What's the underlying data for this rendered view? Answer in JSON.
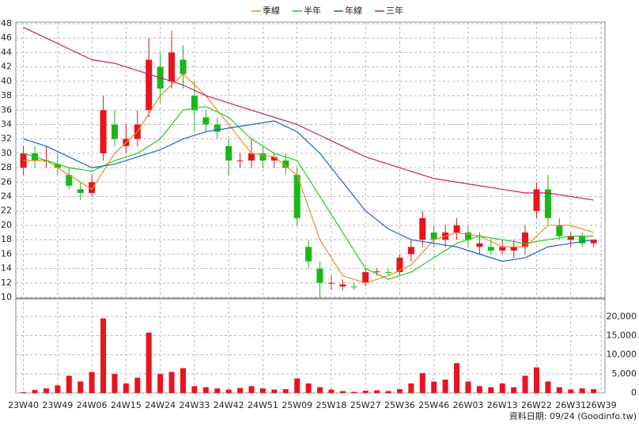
{
  "chart_data": [
    {
      "type": "candlestick",
      "x": [
        0,
        3,
        6,
        9,
        12,
        15,
        18,
        21,
        24,
        27,
        30,
        33,
        36,
        39,
        42,
        45,
        48,
        51,
        54,
        57,
        60,
        63,
        66,
        69,
        72,
        75,
        78,
        81,
        84,
        87,
        90,
        93,
        96,
        99,
        102,
        105,
        108,
        111,
        114,
        117,
        120,
        123,
        126,
        129,
        132,
        135,
        138,
        141,
        144,
        147,
        150
      ],
      "open": [
        28,
        30,
        29,
        28.5,
        27,
        25,
        24.5,
        30,
        34,
        31,
        32,
        36,
        42,
        40,
        43,
        38,
        35,
        34,
        31,
        29,
        29,
        30,
        29,
        29,
        27,
        17,
        14,
        12,
        11.5,
        11.5,
        12,
        13.5,
        13.5,
        13.5,
        16,
        18,
        19,
        18,
        19,
        19,
        17,
        17,
        16.5,
        16.5,
        17,
        22,
        25,
        20,
        18,
        18.5,
        17.5
      ],
      "high": [
        31,
        31,
        31,
        30,
        28,
        26,
        27,
        38,
        36,
        34,
        36,
        46,
        44,
        47,
        45,
        40,
        36,
        35,
        32,
        30,
        32,
        31,
        30,
        30,
        28,
        18,
        15,
        13,
        12.5,
        12,
        14,
        14,
        14,
        16,
        18,
        22,
        20,
        20,
        21,
        20,
        19,
        18,
        18,
        18,
        20,
        26,
        27,
        21,
        19,
        19,
        18
      ],
      "low": [
        27,
        28,
        28,
        27,
        25,
        23.5,
        24,
        29,
        31,
        30,
        31,
        35,
        37,
        39,
        39,
        33,
        33,
        32,
        27,
        28,
        28,
        28,
        28,
        27,
        20,
        14,
        10,
        11,
        11,
        11,
        11.5,
        13,
        13,
        13,
        15,
        17,
        17,
        17,
        18,
        17,
        16,
        16,
        16,
        15.5,
        16,
        21,
        20,
        18,
        17,
        17,
        17
      ],
      "close": [
        30,
        29,
        29,
        28,
        25.5,
        24.5,
        26,
        36,
        32,
        32,
        34,
        43,
        39,
        44,
        41,
        36,
        34,
        33,
        29,
        29,
        30,
        29,
        29.5,
        28,
        21,
        15,
        12,
        12,
        11.8,
        11.4,
        13.5,
        13.6,
        13.4,
        15.5,
        17,
        21,
        18,
        19,
        20,
        18,
        17.5,
        16.5,
        17,
        17,
        19,
        25,
        21,
        18.5,
        18.5,
        17.5,
        18
      ],
      "up_color": "#e8141e",
      "down_color": "#18b818",
      "xlim": [
        -2,
        153
      ],
      "ylim": [
        10,
        48
      ],
      "yticks": [
        10,
        12,
        14,
        16,
        18,
        20,
        22,
        24,
        26,
        28,
        30,
        32,
        34,
        36,
        38,
        40,
        42,
        44,
        46,
        48
      ],
      "grid": true,
      "series": [
        {
          "name": "季線",
          "color": "#f08a24",
          "x": [
            0,
            6,
            12,
            18,
            24,
            30,
            36,
            42,
            48,
            54,
            60,
            66,
            72,
            78,
            84,
            90,
            96,
            102,
            108,
            114,
            120,
            126,
            132,
            138,
            144,
            150
          ],
          "values": [
            29,
            29,
            27,
            25,
            30,
            33,
            38,
            41,
            38,
            34,
            30,
            29.5,
            27,
            18,
            13,
            12,
            13,
            14.5,
            18,
            19,
            18.5,
            17,
            17,
            20,
            20,
            19
          ]
        },
        {
          "name": "半年",
          "color": "#22cc22",
          "x": [
            0,
            6,
            12,
            18,
            24,
            30,
            36,
            42,
            48,
            54,
            60,
            66,
            72,
            78,
            84,
            90,
            96,
            102,
            108,
            114,
            120,
            126,
            132,
            138,
            144,
            150
          ],
          "values": [
            30,
            29,
            28,
            27.5,
            29,
            30,
            32,
            36,
            36.5,
            35,
            32,
            30,
            29,
            24,
            19,
            14,
            12.5,
            13.5,
            15.5,
            17.5,
            18.5,
            18,
            17.5,
            18,
            18.5,
            18.5
          ]
        },
        {
          "name": "年線",
          "color": "#1f5fd6",
          "x": [
            0,
            6,
            12,
            18,
            24,
            30,
            36,
            42,
            48,
            54,
            60,
            66,
            72,
            78,
            84,
            90,
            96,
            102,
            108,
            114,
            120,
            126,
            132,
            138,
            144,
            150
          ],
          "values": [
            32,
            31,
            29.5,
            28,
            28.5,
            29.5,
            30.5,
            32,
            33,
            33.5,
            34,
            34.5,
            33,
            30,
            26,
            22,
            19.5,
            18,
            17.5,
            17,
            16,
            15,
            15.5,
            17,
            17.5,
            18
          ]
        },
        {
          "name": "三年",
          "color": "#d0186e",
          "x": [
            0,
            6,
            12,
            18,
            24,
            30,
            36,
            42,
            48,
            54,
            60,
            66,
            72,
            78,
            84,
            90,
            96,
            102,
            108,
            114,
            120,
            126,
            132,
            138,
            144,
            150
          ],
          "values": [
            47.5,
            46,
            44.5,
            43,
            42.5,
            41.5,
            40.5,
            39.5,
            38,
            37,
            36,
            35,
            34,
            32.5,
            31,
            29.5,
            28.5,
            27.5,
            26.5,
            26,
            25.5,
            25,
            24.5,
            24.5,
            24,
            23.5
          ]
        }
      ]
    },
    {
      "type": "bar",
      "x": [
        0,
        3,
        6,
        9,
        12,
        15,
        18,
        21,
        24,
        27,
        30,
        33,
        36,
        39,
        42,
        45,
        48,
        51,
        54,
        57,
        60,
        63,
        66,
        69,
        72,
        75,
        78,
        81,
        84,
        87,
        90,
        93,
        96,
        99,
        102,
        105,
        108,
        111,
        114,
        117,
        120,
        123,
        126,
        129,
        132,
        135,
        138,
        141,
        144,
        147,
        150
      ],
      "values": [
        200,
        800,
        1200,
        2000,
        4500,
        3000,
        5500,
        19500,
        5000,
        2500,
        4000,
        15800,
        5000,
        5500,
        6500,
        1800,
        1500,
        1200,
        900,
        1300,
        1800,
        1200,
        900,
        1000,
        3800,
        2500,
        1500,
        900,
        500,
        300,
        600,
        700,
        500,
        1000,
        2500,
        5200,
        3000,
        3500,
        7800,
        3000,
        1800,
        1500,
        2500,
        1500,
        4500,
        6700,
        3000,
        1500,
        900,
        1200,
        1000
      ],
      "color": "#e8141e",
      "xlim": [
        -2,
        153
      ],
      "ylim": [
        0,
        24600
      ],
      "yticks": [
        0,
        {
          "value": 5000,
          "label": "5,000"
        },
        {
          "value": 10000,
          "label": "10,000"
        },
        {
          "value": 15000,
          "label": "15,000"
        },
        {
          "value": 20000,
          "label": "20,000"
        }
      ],
      "xticks": [
        {
          "value": 0,
          "label": "23W40"
        },
        {
          "value": 9,
          "label": "23W49"
        },
        {
          "value": 18,
          "label": "24W06"
        },
        {
          "value": 27,
          "label": "24W15"
        },
        {
          "value": 36,
          "label": "24W24"
        },
        {
          "value": 45,
          "label": "24W33"
        },
        {
          "value": 54,
          "label": "24W42"
        },
        {
          "value": 63,
          "label": "24W51"
        },
        {
          "value": 72,
          "label": "25W09"
        },
        {
          "value": 81,
          "label": "25W18"
        },
        {
          "value": 90,
          "label": "25W27"
        },
        {
          "value": 99,
          "label": "25W36"
        },
        {
          "value": 108,
          "label": "25W46"
        },
        {
          "value": 117,
          "label": "26W03"
        },
        {
          "value": 126,
          "label": "26W13"
        },
        {
          "value": 135,
          "label": "26W22"
        },
        {
          "value": 144,
          "label": "26W31"
        },
        {
          "value": 152,
          "label": "26W39"
        }
      ],
      "grid": true
    }
  ],
  "footer": "資料日期: 09/24 (Goodinfo.tw)"
}
